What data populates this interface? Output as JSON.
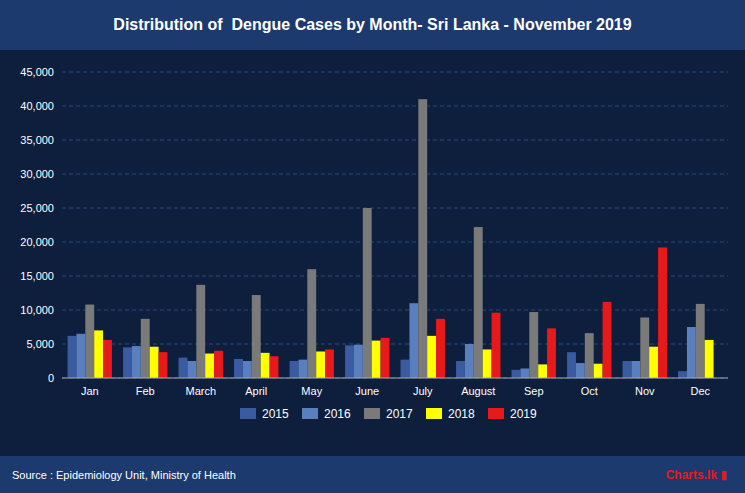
{
  "chart_data": {
    "type": "bar",
    "title": "Distribution of  Dengue Cases by Month- Sri Lanka - November 2019",
    "categories": [
      "Jan",
      "Feb",
      "March",
      "April",
      "May",
      "June",
      "July",
      "August",
      "Sep",
      "Oct",
      "Nov",
      "Dec"
    ],
    "series": [
      {
        "name": "2015",
        "color": "#3a5ba0",
        "values": [
          6200,
          4500,
          3000,
          2800,
          2500,
          4800,
          2700,
          2500,
          1200,
          3800,
          2500,
          1000
        ]
      },
      {
        "name": "2016",
        "color": "#5a7fbf",
        "values": [
          6500,
          4700,
          2500,
          2500,
          2700,
          4900,
          11000,
          5000,
          1400,
          2200,
          2500,
          7500
        ]
      },
      {
        "name": "2017",
        "color": "#7a7a7a",
        "values": [
          10800,
          8700,
          13700,
          12200,
          16000,
          25000,
          41000,
          22200,
          9700,
          6600,
          8900,
          10900
        ]
      },
      {
        "name": "2018",
        "color": "#ffff00",
        "values": [
          7000,
          4600,
          3600,
          3700,
          3900,
          5500,
          6200,
          4200,
          2000,
          2100,
          4600,
          5600
        ]
      },
      {
        "name": "2019",
        "color": "#e8191a",
        "values": [
          5600,
          3800,
          4000,
          3200,
          4200,
          5900,
          8700,
          9600,
          7300,
          11200,
          19200,
          0
        ]
      }
    ],
    "ylim": [
      0,
      45000
    ],
    "yticks": [
      0,
      {
        "value": 5000,
        "label": "5,000"
      },
      {
        "value": 10000,
        "label": "10,000"
      },
      {
        "value": 15000,
        "label": "15,000"
      },
      {
        "value": 20000,
        "label": "20,000"
      },
      {
        "value": 25000,
        "label": "25,000"
      },
      {
        "value": 30000,
        "label": "30,000"
      },
      {
        "value": 35000,
        "label": "35,000"
      },
      {
        "value": 40000,
        "label": "40,000"
      },
      {
        "value": 45000,
        "label": "45,000"
      }
    ],
    "grid": true,
    "legend": "bottom",
    "annotations": [
      "Source : Epidemiology Unit, Ministry of Health",
      "Charts.lk ▮"
    ]
  }
}
